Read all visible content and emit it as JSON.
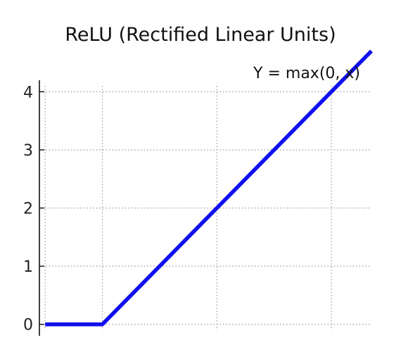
{
  "chart_data": {
    "type": "line",
    "title": "ReLU (Rectified Linear Units)",
    "xlabel": "",
    "ylabel": "",
    "x": [
      -1,
      0,
      4.7
    ],
    "series": [
      {
        "values": [
          0,
          0,
          4.7
        ],
        "color": "#1010ee"
      }
    ],
    "annotation": "Y = max(0, x)",
    "xlim": [
      -1.1,
      4.7
    ],
    "ylim": [
      -0.1,
      4.1
    ],
    "xticks": [
      -1,
      0,
      2,
      4
    ],
    "yticks": [
      0,
      1,
      2,
      3,
      4
    ],
    "ytick_labels": [
      "0",
      "1",
      "2",
      "3",
      "4"
    ],
    "grid": true,
    "grid_style": "dotted",
    "legend": "none"
  }
}
